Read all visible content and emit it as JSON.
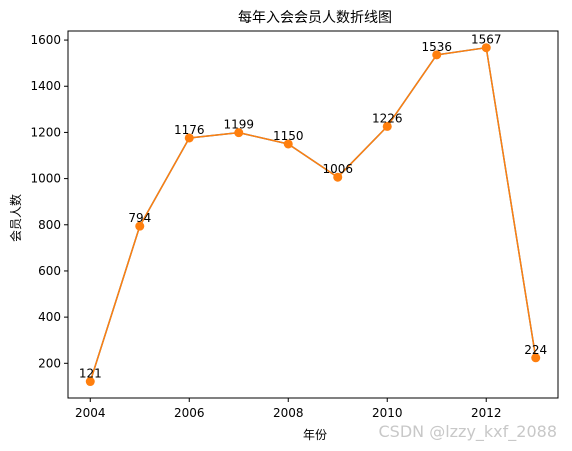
{
  "chart_data": {
    "type": "line",
    "title": "每年入会会员人数折线图",
    "xlabel": "年份",
    "ylabel": "会员人数",
    "x": [
      2004,
      2005,
      2006,
      2007,
      2008,
      2009,
      2010,
      2011,
      2012,
      2013
    ],
    "series": [
      {
        "values": [
          121,
          794,
          1176,
          1199,
          1150,
          1006,
          1226,
          1536,
          1567,
          224
        ],
        "line_colors": [
          "#1f77b4",
          "#ff7f0e"
        ],
        "marker_color": "#ff7f0e"
      }
    ],
    "data_labels": [
      "121",
      "794",
      "1176",
      "1199",
      "1150",
      "1006",
      "1226",
      "1536",
      "1567",
      "224"
    ],
    "xticks": [
      2004,
      2006,
      2008,
      2010,
      2012
    ],
    "xtick_labels": [
      "2004",
      "2006",
      "2008",
      "2010",
      "2012"
    ],
    "yticks": [
      200,
      400,
      600,
      800,
      1000,
      1200,
      1400,
      1600
    ],
    "ytick_labels": [
      "200",
      "400",
      "600",
      "800",
      "1000",
      "1200",
      "1400",
      "1600"
    ],
    "xlim": [
      2003.55,
      2013.45
    ],
    "ylim": [
      49.7,
      1639.3
    ],
    "grid": false
  },
  "watermark": "CSDN @lzzy_kxf_2088"
}
